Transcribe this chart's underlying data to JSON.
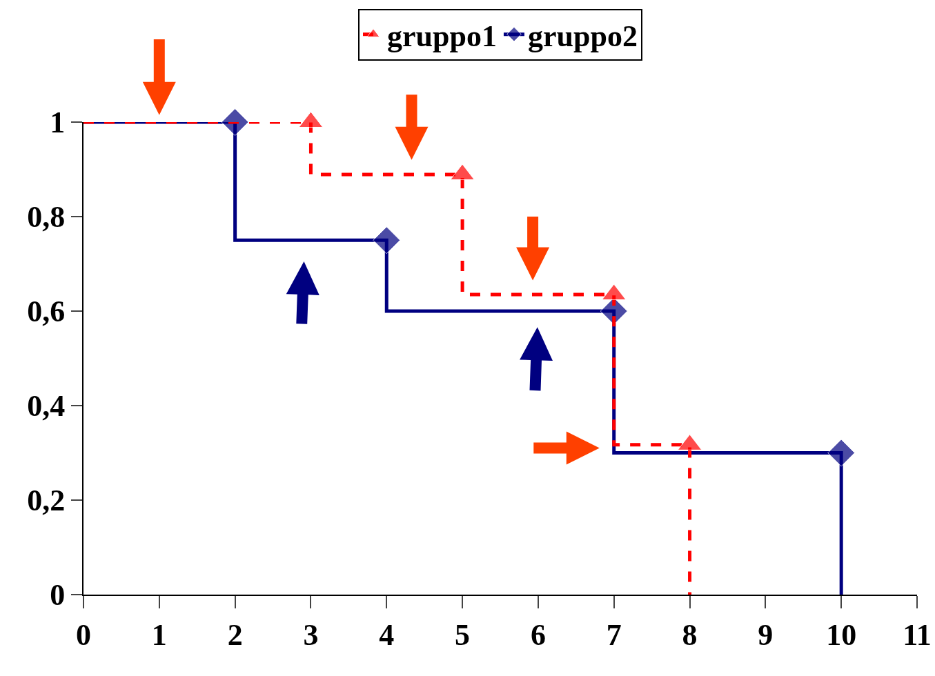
{
  "chart_data": {
    "type": "step",
    "legend": "top",
    "grid": false,
    "xlim": [
      0,
      11
    ],
    "xticks": [
      0,
      1,
      2,
      3,
      4,
      5,
      6,
      7,
      8,
      9,
      10,
      11
    ],
    "ylim": [
      0,
      1
    ],
    "yticks": [
      0,
      {
        "value": 0.2,
        "label": "0,2"
      },
      {
        "value": 0.4,
        "label": "0,4"
      },
      {
        "value": 0.6,
        "label": "0,6"
      },
      {
        "value": 0.8,
        "label": "0,8"
      },
      1
    ],
    "series": [
      {
        "name": "gruppo1",
        "color": "#ff0000",
        "line_style": "dashed",
        "marker": "triangle",
        "x": [
          0,
          3,
          5,
          7,
          8,
          8
        ],
        "values": [
          1,
          1,
          0.889,
          0.635,
          0.317,
          0
        ]
      },
      {
        "name": "gruppo2",
        "color": "#000080",
        "line_style": "solid",
        "marker": "diamond",
        "x": [
          0,
          2,
          4,
          7,
          10,
          10
        ],
        "values": [
          1,
          1,
          0.75,
          0.6,
          0.3,
          0
        ]
      }
    ]
  }
}
